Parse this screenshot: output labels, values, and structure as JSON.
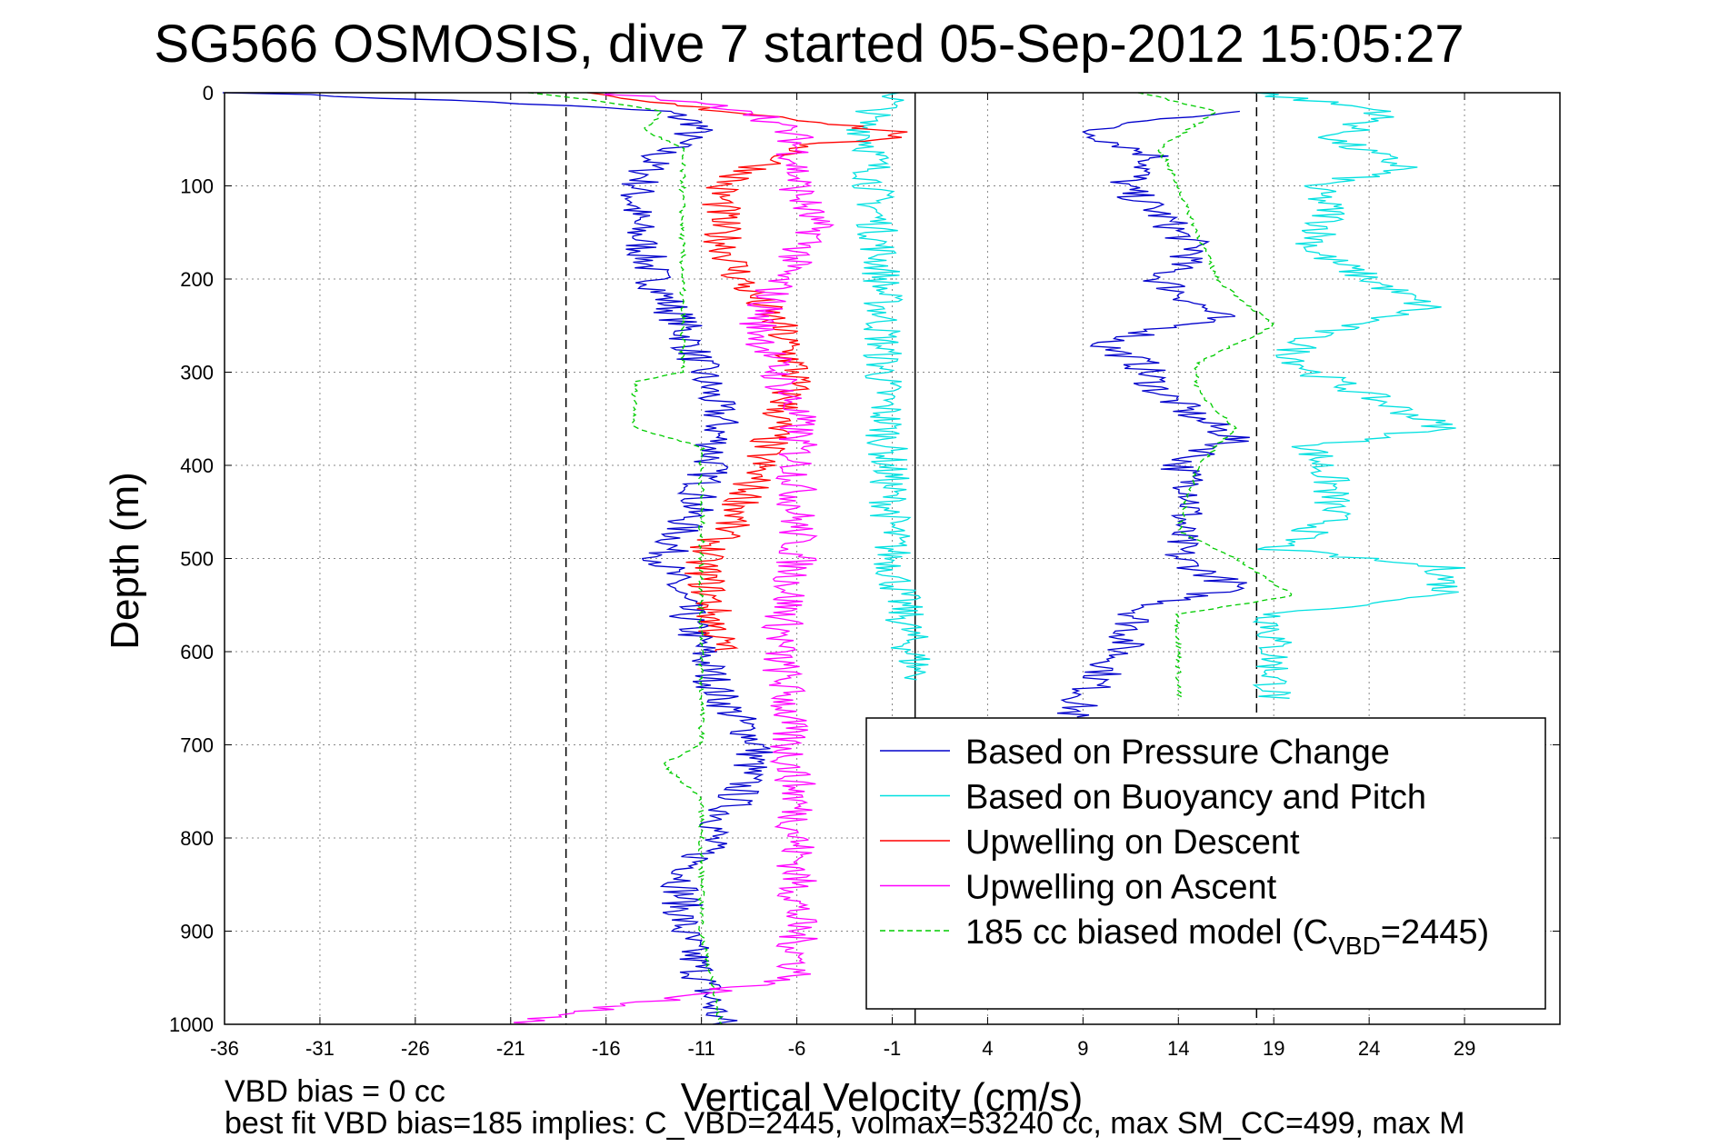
{
  "chart_data": {
    "type": "line",
    "title": "SG566 OSMOSIS, dive 7 started 05-Sep-2012 15:05:27",
    "xlabel": "Vertical Velocity (cm/s)",
    "ylabel": "Depth (m)",
    "xlim": [
      -36,
      34
    ],
    "ylim": [
      0,
      1000
    ],
    "y_reversed": true,
    "grid": true,
    "x_ticks": [
      "-36",
      "-31",
      "-26",
      "-21",
      "-16",
      "-11",
      "-6",
      "-1",
      "4",
      "9",
      "14",
      "19",
      "24",
      "29"
    ],
    "y_ticks": [
      "0",
      "100",
      "200",
      "300",
      "400",
      "500",
      "600",
      "700",
      "800",
      "900",
      "1000"
    ],
    "vertical_lines": [
      {
        "x": -18.1,
        "style": "dashed",
        "color": "#000000"
      },
      {
        "x": 0.2,
        "style": "solid",
        "color": "#000000"
      },
      {
        "x": 18.1,
        "style": "dashed",
        "color": "#000000"
      }
    ],
    "legend_position": "bottom-right",
    "series": [
      {
        "name": "Based on Pressure Change",
        "color": "#0000cc",
        "style": "solid",
        "branch": "descent",
        "depth": [
          0,
          10,
          20,
          35,
          50,
          70,
          90,
          110,
          140,
          170,
          200,
          250,
          300,
          350,
          400,
          450,
          500,
          550,
          600,
          650,
          700,
          750,
          800,
          850,
          900,
          950,
          1000
        ],
        "values": [
          -35,
          -22,
          -13,
          -11,
          -12,
          -13.5,
          -14,
          -14.5,
          -14.5,
          -14,
          -13.5,
          -12,
          -11,
          -10,
          -10.5,
          -11.5,
          -13,
          -12,
          -11,
          -10,
          -8,
          -9,
          -10.5,
          -12,
          -12,
          -11,
          -10
        ]
      },
      {
        "name": "",
        "color": "#0000cc",
        "style": "solid",
        "branch": "ascent",
        "depth": [
          20,
          40,
          70,
          100,
          130,
          170,
          200,
          240,
          270,
          290,
          320,
          350,
          370,
          400,
          430,
          470,
          500,
          530,
          555,
          600,
          650,
          680
        ],
        "values": [
          17,
          9,
          13,
          11,
          13,
          15,
          13,
          16,
          10,
          12,
          13,
          15,
          17,
          14,
          15,
          14,
          14,
          17,
          12,
          11,
          9,
          8
        ]
      },
      {
        "name": "Based on Buoyancy and Pitch",
        "color": "#00e0e0",
        "style": "solid",
        "branch": "descent",
        "depth": [
          0,
          30,
          60,
          100,
          200,
          300,
          400,
          500,
          600,
          630
        ],
        "values": [
          -0.5,
          -2.5,
          -2,
          -2,
          -1.5,
          -1.5,
          -1.2,
          -1,
          0,
          0.5
        ]
      },
      {
        "name": "",
        "color": "#00e0e0",
        "style": "solid",
        "branch": "ascent",
        "depth": [
          0,
          20,
          50,
          80,
          100,
          130,
          170,
          230,
          260,
          280,
          300,
          360,
          380,
          420,
          460,
          480,
          490,
          510,
          540,
          560,
          600,
          650
        ],
        "values": [
          18,
          25,
          22,
          26,
          21,
          22,
          21,
          27,
          21,
          20,
          21,
          28,
          21,
          22,
          22,
          20,
          19,
          28,
          28,
          19,
          19,
          19
        ]
      },
      {
        "name": "Upwelling on Descent",
        "color": "#ff0000",
        "style": "solid",
        "depth": [
          0,
          10,
          30,
          45,
          55,
          80,
          100,
          150,
          200,
          250,
          300,
          350,
          400,
          450,
          500,
          550,
          600
        ],
        "values": [
          -18,
          -14,
          -5,
          0,
          -5,
          -8,
          -10,
          -10,
          -9,
          -7,
          -6,
          -7,
          -8,
          -9,
          -11,
          -10.5,
          -10
        ]
      },
      {
        "name": "Upwelling on Ascent",
        "color": "#ff00ff",
        "style": "solid",
        "depth": [
          0,
          20,
          50,
          100,
          150,
          200,
          250,
          300,
          350,
          400,
          450,
          500,
          550,
          600,
          650,
          700,
          750,
          800,
          850,
          900,
          950,
          980,
          1000
        ],
        "values": [
          -16,
          -8,
          -6,
          -6,
          -5,
          -7,
          -8,
          -7,
          -6,
          -6,
          -6,
          -6,
          -6.5,
          -7,
          -6.5,
          -6.5,
          -6,
          -6,
          -6,
          -6,
          -6,
          -15,
          -21
        ]
      },
      {
        "name": "185 cc biased model (C",
        "name_sub": "VBD",
        "name_suffix": "=2445)",
        "color": "#00cc00",
        "style": "dashed",
        "branch": "descent",
        "depth": [
          0,
          10,
          20,
          40,
          60,
          80,
          100,
          200,
          300,
          310,
          360,
          380,
          400,
          500,
          600,
          700,
          720,
          760,
          800,
          900,
          1000
        ],
        "values": [
          -20,
          -16,
          -13,
          -14,
          -12,
          -12,
          -12,
          -12,
          -12,
          -14.5,
          -14.5,
          -11,
          -11,
          -11,
          -11,
          -11,
          -13,
          -11,
          -11,
          -11,
          -10
        ]
      },
      {
        "name": "",
        "color": "#00cc00",
        "style": "dashed",
        "branch": "ascent",
        "depth": [
          0,
          20,
          60,
          100,
          150,
          200,
          250,
          290,
          320,
          360,
          400,
          470,
          500,
          540,
          560,
          600,
          650
        ],
        "values": [
          12,
          16,
          13,
          14,
          15,
          16,
          19,
          15,
          15,
          17,
          15,
          14,
          17,
          20,
          14,
          14,
          14
        ]
      }
    ]
  },
  "footer": {
    "line1": "VBD bias = 0 cc",
    "line2": "best fit VBD bias=185 implies: C_VBD=2445, volmax=53240 cc, max SM_CC=499, max M"
  }
}
